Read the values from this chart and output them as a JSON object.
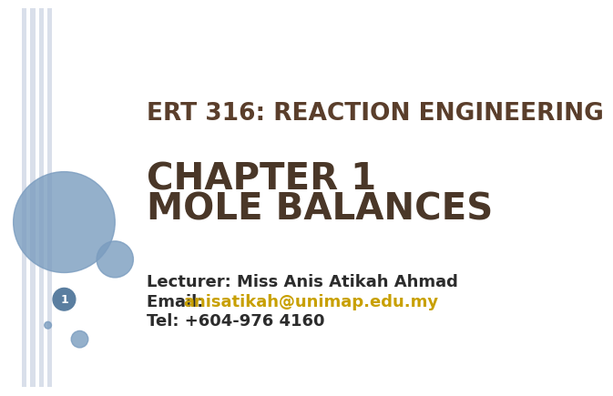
{
  "bg_color": "#ffffff",
  "title_text": "ERT 316: REACTION ENGINEERING",
  "title_color": "#5a3e2b",
  "chapter_line1": "CHAPTER 1",
  "chapter_line2": "MOLE BALANCES",
  "chapter_color": "#4a3728",
  "lecturer_text": "Lecturer: Miss Anis Atikah Ahmad",
  "email_label": "Email: ",
  "email_link": "anisatikah@unimap.edu.my",
  "email_link_color": "#c8a000",
  "tel_text": "Tel: +604-976 4160",
  "info_color": "#2c2c2c",
  "info_fontsize": 13,
  "title_fontsize": 19,
  "chapter_fontsize": 29,
  "stripe_color": "#cdd5e3",
  "circle_color": "#7a9cbf",
  "page_num_bg": "#5a7ea0",
  "page_num_color": "#ffffff",
  "page_num": "1"
}
